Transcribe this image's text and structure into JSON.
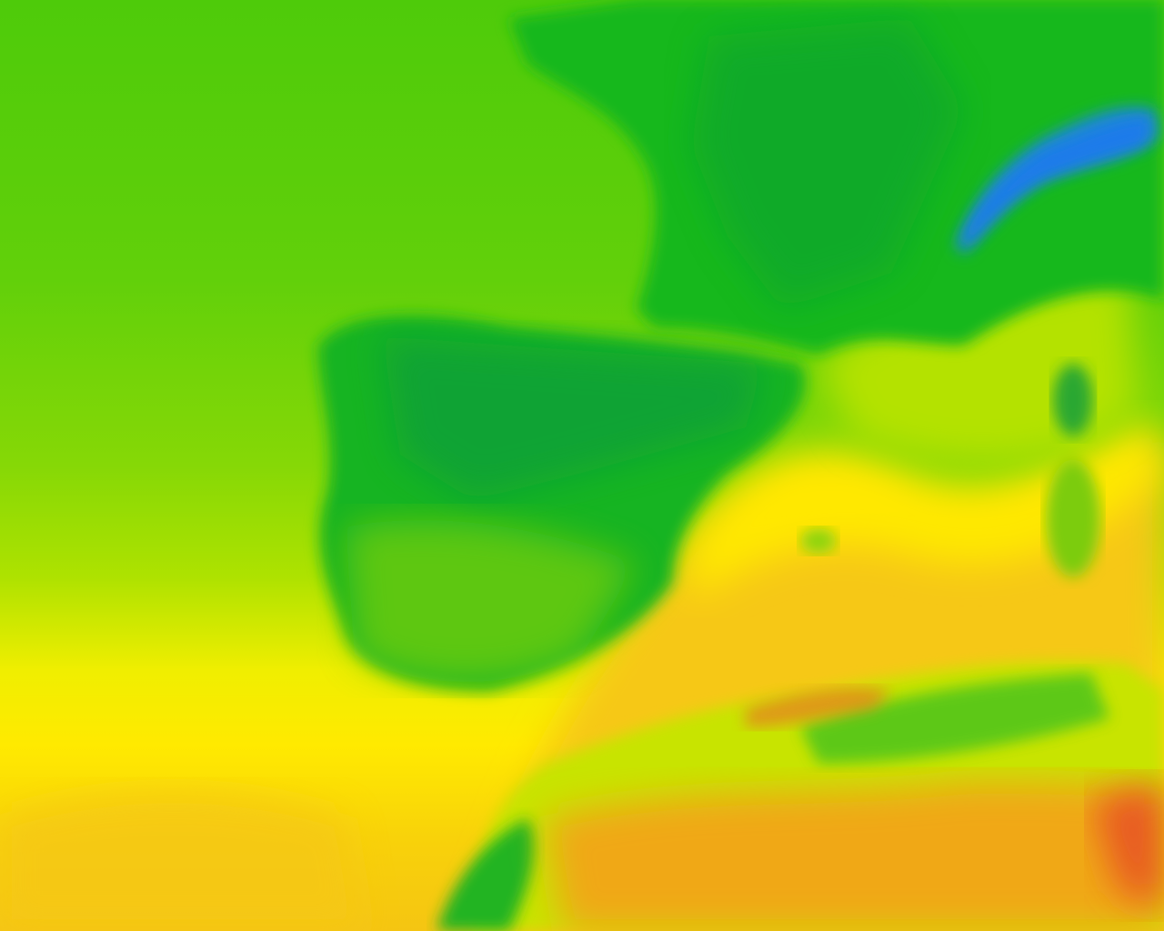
{
  "map": {
    "colors": {
      "cold": "#1a6fe0",
      "cool": "#1aa83a",
      "green": "#12b41a",
      "mild": "#52cc0a",
      "light_green": "#a8e000",
      "yellow": "#ffea00",
      "orange": "#f5c010",
      "hot": "#f08a1a",
      "very_hot": "#e85020"
    }
  }
}
